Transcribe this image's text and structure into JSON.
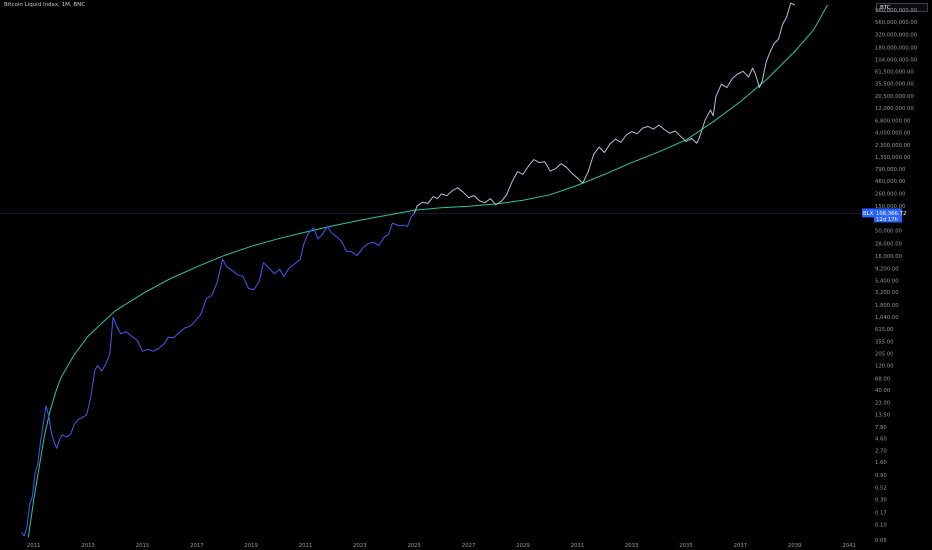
{
  "header": {
    "title": "Bitcoin Liquid Index, 1M, BNC",
    "symbol": "BTC"
  },
  "colors": {
    "background": "#000000",
    "history_line": "#3f5bf2",
    "projection_line": "#a9c4d6",
    "curve_line": "#26c6a0",
    "badge_fill": "#2962ff",
    "price_line": "#2a3a8a"
  },
  "chart_data": {
    "type": "line",
    "title": "Bitcoin Liquid Index, 1M, BNC",
    "yscale": "log",
    "ylim": [
      0.05,
      1500000000
    ],
    "xlim": [
      2010.2,
      2041.4
    ],
    "grid": false,
    "x_ticks": [
      "2011",
      "2013",
      "2015",
      "2017",
      "2019",
      "2021",
      "2023",
      "2025",
      "2027",
      "2029",
      "2031",
      "2033",
      "2035",
      "2037",
      "2039",
      "2041"
    ],
    "y_ticks": [
      "960,000,000.00",
      "560,000,000.00",
      "320,000,000.00",
      "180,000,000.00",
      "104,000,000.00",
      "61,500,000.00",
      "35,500,000.00",
      "20,500,000.00",
      "12,000,000.00",
      "6,800,000.00",
      "4,000,000.00",
      "2,300,000.00",
      "1,350,000.00",
      "790,000.00",
      "460,000.00",
      "260,000.00",
      "150,000.00",
      "50,000.00",
      "28,000.00",
      "16,000.00",
      "9,200.00",
      "5,400.00",
      "3,200.00",
      "1,800.00",
      "1,040.00",
      "615.00",
      "355.00",
      "205.00",
      "120.00",
      "68.00",
      "40.00",
      "23.00",
      "13.50",
      "7.80",
      "4.60",
      "2.70",
      "1.60",
      "0.90",
      "0.52",
      "0.30",
      "0.17",
      "0.10",
      "0.05"
    ],
    "last_value_badge": {
      "symbol": "BLX",
      "value": "108,366.72",
      "countdown": "12d 17h",
      "y": 108366.72
    },
    "series": [
      {
        "kind": "history",
        "points": [
          [
            2010.55,
            0.07
          ],
          [
            2010.65,
            0.06
          ],
          [
            2010.75,
            0.09
          ],
          [
            2010.85,
            0.25
          ],
          [
            2010.95,
            0.35
          ],
          [
            2011.05,
            1.0
          ],
          [
            2011.15,
            1.5
          ],
          [
            2011.25,
            4.0
          ],
          [
            2011.35,
            9.0
          ],
          [
            2011.45,
            20.0
          ],
          [
            2011.55,
            13.0
          ],
          [
            2011.65,
            6.0
          ],
          [
            2011.75,
            4.0
          ],
          [
            2011.85,
            3.0
          ],
          [
            2011.95,
            4.5
          ],
          [
            2012.05,
            5.5
          ],
          [
            2012.2,
            5.0
          ],
          [
            2012.35,
            5.5
          ],
          [
            2012.5,
            9.0
          ],
          [
            2012.65,
            11.0
          ],
          [
            2012.8,
            12.0
          ],
          [
            2012.95,
            13.5
          ],
          [
            2013.1,
            30.0
          ],
          [
            2013.25,
            100.0
          ],
          [
            2013.35,
            120.0
          ],
          [
            2013.5,
            95.0
          ],
          [
            2013.65,
            130.0
          ],
          [
            2013.8,
            200.0
          ],
          [
            2013.92,
            1050.0
          ],
          [
            2014.05,
            700.0
          ],
          [
            2014.2,
            500.0
          ],
          [
            2014.4,
            550.0
          ],
          [
            2014.6,
            450.0
          ],
          [
            2014.8,
            380.0
          ],
          [
            2015.0,
            230.0
          ],
          [
            2015.2,
            250.0
          ],
          [
            2015.4,
            230.0
          ],
          [
            2015.6,
            260.0
          ],
          [
            2015.8,
            320.0
          ],
          [
            2015.95,
            430.0
          ],
          [
            2016.15,
            420.0
          ],
          [
            2016.35,
            530.0
          ],
          [
            2016.55,
            650.0
          ],
          [
            2016.75,
            700.0
          ],
          [
            2016.95,
            900.0
          ],
          [
            2017.15,
            1200.0
          ],
          [
            2017.35,
            2400.0
          ],
          [
            2017.55,
            2800.0
          ],
          [
            2017.75,
            5000.0
          ],
          [
            2017.95,
            14000.0
          ],
          [
            2018.1,
            10000.0
          ],
          [
            2018.3,
            8500.0
          ],
          [
            2018.5,
            7000.0
          ],
          [
            2018.7,
            6500.0
          ],
          [
            2018.9,
            3800.0
          ],
          [
            2019.1,
            3600.0
          ],
          [
            2019.3,
            5300.0
          ],
          [
            2019.45,
            12000.0
          ],
          [
            2019.65,
            9500.0
          ],
          [
            2019.85,
            7300.0
          ],
          [
            2020.05,
            9000.0
          ],
          [
            2020.2,
            6500.0
          ],
          [
            2020.4,
            9400.0
          ],
          [
            2020.6,
            11500.0
          ],
          [
            2020.8,
            13800.0
          ],
          [
            2020.95,
            29000.0
          ],
          [
            2021.1,
            45000.0
          ],
          [
            2021.3,
            57000.0
          ],
          [
            2021.45,
            35000.0
          ],
          [
            2021.6,
            41000.0
          ],
          [
            2021.8,
            61000.0
          ],
          [
            2021.95,
            46000.0
          ],
          [
            2022.15,
            38000.0
          ],
          [
            2022.35,
            30000.0
          ],
          [
            2022.5,
            20000.0
          ],
          [
            2022.7,
            19500.0
          ],
          [
            2022.9,
            16500.0
          ],
          [
            2023.1,
            23000.0
          ],
          [
            2023.3,
            28000.0
          ],
          [
            2023.5,
            30000.0
          ],
          [
            2023.7,
            26000.0
          ],
          [
            2023.9,
            38000.0
          ],
          [
            2024.05,
            42000.0
          ],
          [
            2024.2,
            70000.0
          ],
          [
            2024.45,
            62000.0
          ],
          [
            2024.6,
            64000.0
          ],
          [
            2024.75,
            61000.0
          ],
          [
            2024.9,
            95000.0
          ],
          [
            2025.0,
            108366.72
          ]
        ]
      },
      {
        "kind": "projection",
        "points": [
          [
            2025.0,
            108366.72
          ],
          [
            2025.1,
            150000.0
          ],
          [
            2025.3,
            180000.0
          ],
          [
            2025.5,
            170000.0
          ],
          [
            2025.7,
            230000.0
          ],
          [
            2025.85,
            210000.0
          ],
          [
            2026.0,
            260000.0
          ],
          [
            2026.2,
            240000.0
          ],
          [
            2026.4,
            300000.0
          ],
          [
            2026.6,
            340000.0
          ],
          [
            2026.8,
            280000.0
          ],
          [
            2027.0,
            220000.0
          ],
          [
            2027.2,
            240000.0
          ],
          [
            2027.4,
            190000.0
          ],
          [
            2027.6,
            175000.0
          ],
          [
            2027.8,
            210000.0
          ],
          [
            2028.0,
            160000.0
          ],
          [
            2028.2,
            185000.0
          ],
          [
            2028.4,
            250000.0
          ],
          [
            2028.6,
            450000.0
          ],
          [
            2028.8,
            700000.0
          ],
          [
            2029.0,
            620000.0
          ],
          [
            2029.2,
            900000.0
          ],
          [
            2029.4,
            1200000.0
          ],
          [
            2029.6,
            1050000.0
          ],
          [
            2029.8,
            1100000.0
          ],
          [
            2030.0,
            720000.0
          ],
          [
            2030.2,
            800000.0
          ],
          [
            2030.4,
            1000000.0
          ],
          [
            2030.6,
            850000.0
          ],
          [
            2030.8,
            650000.0
          ],
          [
            2031.0,
            530000.0
          ],
          [
            2031.2,
            420000.0
          ],
          [
            2031.4,
            700000.0
          ],
          [
            2031.6,
            1500000.0
          ],
          [
            2031.8,
            2100000.0
          ],
          [
            2032.0,
            1650000.0
          ],
          [
            2032.2,
            2400000.0
          ],
          [
            2032.4,
            3000000.0
          ],
          [
            2032.6,
            2600000.0
          ],
          [
            2032.8,
            3600000.0
          ],
          [
            2033.0,
            4200000.0
          ],
          [
            2033.2,
            3800000.0
          ],
          [
            2033.4,
            4900000.0
          ],
          [
            2033.6,
            5300000.0
          ],
          [
            2033.8,
            4700000.0
          ],
          [
            2034.0,
            5600000.0
          ],
          [
            2034.2,
            4600000.0
          ],
          [
            2034.4,
            3900000.0
          ],
          [
            2034.6,
            4300000.0
          ],
          [
            2034.8,
            3400000.0
          ],
          [
            2035.0,
            2700000.0
          ],
          [
            2035.2,
            3100000.0
          ],
          [
            2035.4,
            2500000.0
          ],
          [
            2035.5,
            3300000.0
          ],
          [
            2035.7,
            7000000.0
          ],
          [
            2035.9,
            11000000.0
          ],
          [
            2036.0,
            8500000.0
          ],
          [
            2036.1,
            20000000.0
          ],
          [
            2036.3,
            35000000.0
          ],
          [
            2036.5,
            30000000.0
          ],
          [
            2036.7,
            45000000.0
          ],
          [
            2036.9,
            55000000.0
          ],
          [
            2037.1,
            62000000.0
          ],
          [
            2037.3,
            48000000.0
          ],
          [
            2037.45,
            72000000.0
          ],
          [
            2037.55,
            55000000.0
          ],
          [
            2037.7,
            30000000.0
          ],
          [
            2037.8,
            40000000.0
          ],
          [
            2037.95,
            95000000.0
          ],
          [
            2038.1,
            150000000.0
          ],
          [
            2038.25,
            220000000.0
          ],
          [
            2038.4,
            260000000.0
          ],
          [
            2038.55,
            500000000.0
          ],
          [
            2038.7,
            700000000.0
          ],
          [
            2038.85,
            1300000000.0
          ],
          [
            2039.0,
            1200000000.0
          ]
        ]
      }
    ],
    "curve": {
      "kind": "fitted-curve",
      "points": [
        [
          2010.8,
          0.056
        ],
        [
          2011.0,
          0.3
        ],
        [
          2011.2,
          1.3
        ],
        [
          2011.4,
          5.5
        ],
        [
          2011.6,
          16.0
        ],
        [
          2011.8,
          36.0
        ],
        [
          2012.0,
          70.0
        ],
        [
          2012.5,
          200.0
        ],
        [
          2013.0,
          450.0
        ],
        [
          2013.5,
          800.0
        ],
        [
          2014.0,
          1400.0
        ],
        [
          2015.0,
          3000.0
        ],
        [
          2016.0,
          5800.0
        ],
        [
          2017.0,
          10000.0
        ],
        [
          2018.0,
          16500.0
        ],
        [
          2019.0,
          25000.0
        ],
        [
          2020.0,
          35000.0
        ],
        [
          2021.0,
          47000.0
        ],
        [
          2022.0,
          62000.0
        ],
        [
          2023.0,
          80000.0
        ],
        [
          2024.0,
          100000.0
        ],
        [
          2025.0,
          125000.0
        ],
        [
          2026.0,
          140000.0
        ],
        [
          2027.0,
          150000.0
        ],
        [
          2028.0,
          165000.0
        ],
        [
          2029.0,
          195000.0
        ],
        [
          2030.0,
          250000.0
        ],
        [
          2031.0,
          380000.0
        ],
        [
          2032.0,
          620000.0
        ],
        [
          2033.0,
          1050000.0
        ],
        [
          2034.0,
          1700000.0
        ],
        [
          2035.0,
          2900000.0
        ],
        [
          2036.0,
          6500000.0
        ],
        [
          2037.0,
          16000000.0
        ],
        [
          2038.0,
          45000000.0
        ],
        [
          2039.0,
          150000000.0
        ],
        [
          2039.7,
          400000000.0
        ],
        [
          2040.2,
          1200000000.0
        ]
      ]
    }
  }
}
